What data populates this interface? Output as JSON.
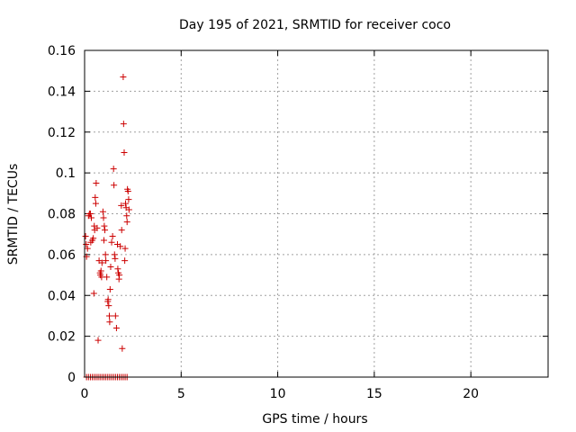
{
  "chart_data": {
    "type": "scatter",
    "title": "Day 195 of 2021, SRMTID for receiver coco",
    "xlabel": "GPS time / hours",
    "ylabel": "SRMTID / TECUs",
    "xlim": [
      0,
      24
    ],
    "ylim": [
      0,
      0.16
    ],
    "grid": true,
    "x_ticks": [
      0,
      5,
      10,
      15,
      20
    ],
    "x_tick_labels": [
      "0",
      "5",
      "10",
      "15",
      "20"
    ],
    "y_ticks": [
      0,
      0.02,
      0.04,
      0.06,
      0.08,
      0.1,
      0.12,
      0.14,
      0.16
    ],
    "y_tick_labels": [
      "0",
      "0.02",
      "0.04",
      "0.06",
      "0.08",
      "0.1",
      "0.12",
      "0.14",
      "0.16"
    ],
    "marker": "+",
    "colors": {
      "points": "#cc0000",
      "grid": "#a0a0a0",
      "axis": "#000000"
    },
    "series": [
      {
        "name": "SRMTID",
        "points": [
          [
            0.05,
            0.069
          ],
          [
            0.08,
            0.065
          ],
          [
            0.1,
            0.059
          ],
          [
            0.15,
            0.063
          ],
          [
            0.2,
            0.079
          ],
          [
            0.25,
            0.08
          ],
          [
            0.3,
            0.08
          ],
          [
            0.32,
            0.066
          ],
          [
            0.35,
            0.078
          ],
          [
            0.4,
            0.067
          ],
          [
            0.45,
            0.068
          ],
          [
            0.48,
            0.041
          ],
          [
            0.5,
            0.074
          ],
          [
            0.52,
            0.072
          ],
          [
            0.55,
            0.088
          ],
          [
            0.58,
            0.085
          ],
          [
            0.6,
            0.095
          ],
          [
            0.65,
            0.073
          ],
          [
            0.7,
            0.018
          ],
          [
            0.75,
            0.057
          ],
          [
            0.8,
            0.051
          ],
          [
            0.82,
            0.05
          ],
          [
            0.85,
            0.052
          ],
          [
            0.88,
            0.049
          ],
          [
            0.9,
            0.056
          ],
          [
            0.95,
            0.081
          ],
          [
            0.98,
            0.078
          ],
          [
            1.0,
            0.067
          ],
          [
            1.02,
            0.074
          ],
          [
            1.05,
            0.072
          ],
          [
            1.08,
            0.06
          ],
          [
            1.1,
            0.057
          ],
          [
            1.15,
            0.049
          ],
          [
            1.2,
            0.037
          ],
          [
            1.22,
            0.038
          ],
          [
            1.25,
            0.035
          ],
          [
            1.28,
            0.03
          ],
          [
            1.3,
            0.027
          ],
          [
            1.32,
            0.043
          ],
          [
            1.35,
            0.054
          ],
          [
            1.4,
            0.066
          ],
          [
            1.45,
            0.069
          ],
          [
            1.5,
            0.102
          ],
          [
            1.52,
            0.094
          ],
          [
            1.55,
            0.06
          ],
          [
            1.58,
            0.058
          ],
          [
            1.6,
            0.03
          ],
          [
            1.65,
            0.024
          ],
          [
            1.7,
            0.065
          ],
          [
            1.72,
            0.053
          ],
          [
            1.75,
            0.051
          ],
          [
            1.78,
            0.048
          ],
          [
            1.8,
            0.05
          ],
          [
            1.85,
            0.064
          ],
          [
            1.9,
            0.084
          ],
          [
            1.92,
            0.072
          ],
          [
            1.95,
            0.014
          ],
          [
            2.0,
            0.147
          ],
          [
            2.02,
            0.124
          ],
          [
            2.05,
            0.11
          ],
          [
            2.08,
            0.057
          ],
          [
            2.1,
            0.063
          ],
          [
            2.12,
            0.085
          ],
          [
            2.15,
            0.083
          ],
          [
            2.18,
            0.079
          ],
          [
            2.2,
            0.076
          ],
          [
            2.22,
            0.092
          ],
          [
            2.25,
            0.091
          ],
          [
            2.28,
            0.087
          ],
          [
            2.3,
            0.082
          ],
          [
            0.1,
            0
          ],
          [
            0.2,
            0
          ],
          [
            0.3,
            0
          ],
          [
            0.4,
            0
          ],
          [
            0.5,
            0
          ],
          [
            0.6,
            0
          ],
          [
            0.7,
            0
          ],
          [
            0.8,
            0
          ],
          [
            0.9,
            0
          ],
          [
            1.0,
            0
          ],
          [
            1.1,
            0
          ],
          [
            1.2,
            0
          ],
          [
            1.3,
            0
          ],
          [
            1.4,
            0
          ],
          [
            1.5,
            0
          ],
          [
            1.6,
            0
          ],
          [
            1.7,
            0
          ],
          [
            1.8,
            0
          ],
          [
            1.9,
            0
          ],
          [
            2.0,
            0
          ],
          [
            2.1,
            0
          ],
          [
            2.2,
            0
          ]
        ]
      }
    ]
  }
}
